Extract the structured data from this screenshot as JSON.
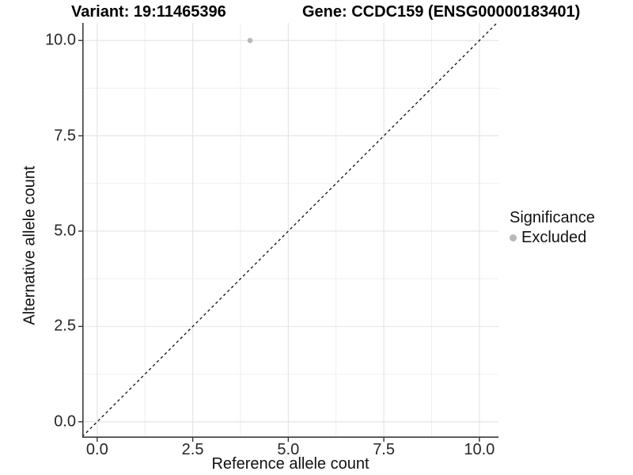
{
  "chart_data": {
    "type": "scatter",
    "title_left": "Variant: 19:11465396",
    "title_right": "Gene: CCDC159 (ENSG00000183401)",
    "xlabel": "Reference allele count",
    "ylabel": "Alternative allele count",
    "xlim": [
      -0.39,
      10.5
    ],
    "ylim": [
      -0.42,
      10.46
    ],
    "x_ticks": [
      0,
      2.5,
      5,
      7.5,
      10
    ],
    "x_tick_labels": [
      "0.0",
      "2.5",
      "5.0",
      "7.5",
      "10.0"
    ],
    "y_ticks": [
      0,
      2.5,
      5,
      7.5,
      10
    ],
    "y_tick_labels": [
      "0.0",
      "2.5",
      "5.0",
      "7.5",
      "10.0"
    ],
    "x_minor": [
      1.25,
      3.75,
      6.25,
      8.75
    ],
    "y_minor": [
      1.25,
      3.75,
      6.25,
      8.75
    ],
    "grid": true,
    "reference_line": {
      "type": "identity y=x",
      "style": "dashed",
      "color": "#111111"
    },
    "series": [
      {
        "name": "Excluded",
        "color": "#b8b8b8",
        "points": [
          [
            4,
            10
          ]
        ]
      }
    ],
    "legend": {
      "position": "right",
      "title": "Significance",
      "entries": [
        {
          "label": "Excluded",
          "color": "#b8b8b8"
        }
      ]
    },
    "style": {
      "grid_major": "#e3e3e3",
      "grid_minor": "#efefef",
      "axis_line": "#3c3c3c",
      "tick_mark": "#333333",
      "point_radius": 3.3
    }
  }
}
